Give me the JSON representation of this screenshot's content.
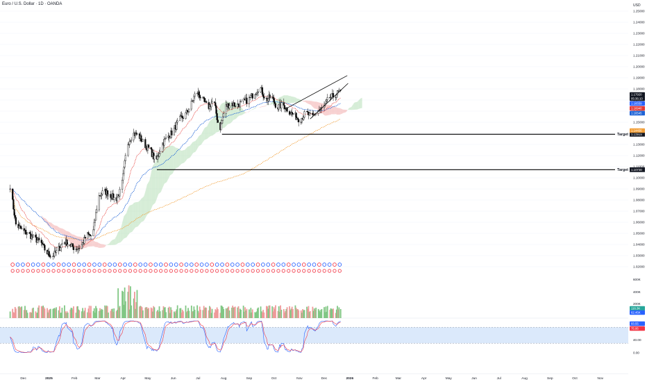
{
  "header": {
    "title": "Euro / U.S. Dollar · 1D · OANDA",
    "currency": "USD"
  },
  "colors": {
    "up": "#0b0b0b",
    "down": "#0b0b0b",
    "ema_fast": "#e53935",
    "ema_mid": "#1e63d6",
    "sma_long": "#f2a03a",
    "cloud_up": "#a5d6a7",
    "cloud_down": "#ef9a9a",
    "target_line": "#000000",
    "rsi_band": "#dbe9fb",
    "volume_up": "#81c784",
    "volume_down": "#ef9a9a",
    "event_blue": "#2962ff",
    "event_red": "#f23645"
  },
  "chart_data": [
    {
      "type": "line",
      "panel": "price",
      "price_axis_ticks": [
        "1.25000",
        "1.24000",
        "1.23000",
        "1.22000",
        "1.21000",
        "1.20000",
        "1.19000",
        "1.18000",
        "1.17000",
        "1.16000",
        "1.15000",
        "1.14000",
        "1.13000",
        "1.12000",
        "1.11000",
        "1.10000",
        "1.09000",
        "1.08000",
        "1.07000",
        "1.06000",
        "1.05000",
        "1.04000",
        "1.03000",
        "1.02000"
      ],
      "ylim": [
        1.015,
        1.255
      ],
      "x_tick_labels": [
        "Dec",
        "2025",
        "Feb",
        "Mar",
        "Apr",
        "May",
        "Jun",
        "Jul",
        "Aug",
        "Sep",
        "Oct",
        "Nov",
        "Dec",
        "2026",
        "Feb",
        "Mar",
        "Apr",
        "May",
        "Jun",
        "Jul",
        "Aug",
        "Sep",
        "Oct",
        "Nov"
      ],
      "series": [
        {
          "kind": "close",
          "x": [
            "2024-11-15",
            "2024-11-22",
            "2024-12-01",
            "2024-12-08",
            "2024-12-15",
            "2024-12-22",
            "2024-12-29",
            "2025-01-05",
            "2025-01-12",
            "2025-01-19",
            "2025-01-26",
            "2025-02-02",
            "2025-02-09",
            "2025-02-16",
            "2025-02-23",
            "2025-03-02",
            "2025-03-09",
            "2025-03-16",
            "2025-03-23",
            "2025-03-30",
            "2025-04-06",
            "2025-04-13",
            "2025-04-20",
            "2025-04-27",
            "2025-05-04",
            "2025-05-11",
            "2025-05-18",
            "2025-05-25",
            "2025-06-01",
            "2025-06-08",
            "2025-06-15",
            "2025-06-22",
            "2025-06-29",
            "2025-07-06",
            "2025-07-13",
            "2025-07-20",
            "2025-07-27",
            "2025-08-03",
            "2025-08-10",
            "2025-08-17",
            "2025-08-24",
            "2025-08-31",
            "2025-09-07",
            "2025-09-14",
            "2025-09-21",
            "2025-09-28",
            "2025-10-05",
            "2025-10-12",
            "2025-10-19",
            "2025-10-26",
            "2025-11-02",
            "2025-11-09",
            "2025-11-16",
            "2025-11-23",
            "2025-11-30",
            "2025-12-07",
            "2025-12-14",
            "2025-12-21"
          ],
          "values": [
            1.093,
            1.058,
            1.052,
            1.049,
            1.045,
            1.042,
            1.033,
            1.029,
            1.035,
            1.043,
            1.04,
            1.036,
            1.038,
            1.049,
            1.047,
            1.083,
            1.088,
            1.085,
            1.08,
            1.09,
            1.13,
            1.14,
            1.138,
            1.13,
            1.125,
            1.114,
            1.13,
            1.137,
            1.142,
            1.152,
            1.156,
            1.165,
            1.178,
            1.171,
            1.163,
            1.17,
            1.142,
            1.164,
            1.167,
            1.165,
            1.168,
            1.17,
            1.176,
            1.182,
            1.17,
            1.173,
            1.163,
            1.166,
            1.16,
            1.156,
            1.152,
            1.159,
            1.154,
            1.16,
            1.163,
            1.172,
            1.174,
            1.179
          ]
        }
      ],
      "price_tags": [
        {
          "value": "1.17920",
          "color": "#131722"
        },
        {
          "value": "05:36:10",
          "color": "#131722"
        },
        {
          "value": "1.16559",
          "color": "#2962ff"
        },
        {
          "value": "1.16940",
          "color": "#e53935"
        },
        {
          "value": "1.16545",
          "color": "#1e63d6"
        },
        {
          "value": "1.14456",
          "color": "#f2a03a"
        }
      ],
      "annotations": [
        {
          "label": "Target",
          "value": "1.13919",
          "y_value": 1.1392,
          "from_x": "2025-07-30"
        },
        {
          "label": "Target",
          "value": "1.10730",
          "y_value": 1.1073,
          "from_x": "2025-05-12"
        }
      ]
    },
    {
      "type": "bar",
      "panel": "volume",
      "axis_ticks": [
        "600K",
        "400K",
        "200K"
      ],
      "tags": [
        "116.3K",
        "62.45K"
      ]
    },
    {
      "type": "line",
      "panel": "oscillator",
      "axis_ticks": [
        "80.00",
        "40.00",
        "0.00"
      ],
      "ylim": [
        0,
        100
      ],
      "band": [
        30,
        80
      ],
      "tags": [
        "93.55",
        "75.95"
      ]
    }
  ]
}
